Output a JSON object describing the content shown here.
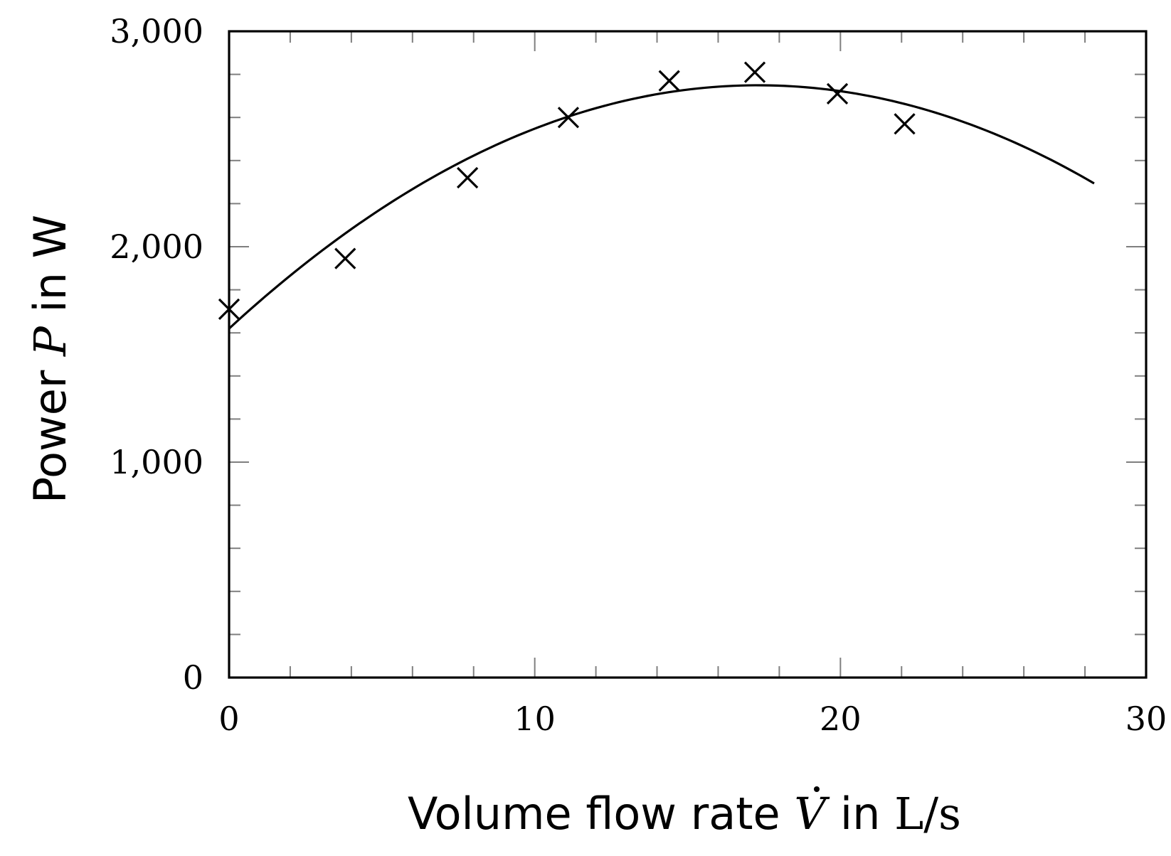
{
  "chart_data": {
    "type": "scatter",
    "xlabel": {
      "prefix": "Volume flow rate ",
      "symbol": "V",
      "mid": " in ",
      "unit": "L/s"
    },
    "ylabel": {
      "prefix": "Power ",
      "symbol": "P",
      "suffix": " in W"
    },
    "xlim": [
      0,
      30
    ],
    "ylim": [
      0,
      3000
    ],
    "x_ticks": [
      {
        "value": 0,
        "label": "0"
      },
      {
        "value": 10,
        "label": "10"
      },
      {
        "value": 20,
        "label": "20"
      },
      {
        "value": 30,
        "label": "30"
      }
    ],
    "y_ticks": [
      {
        "value": 0,
        "label": "0"
      },
      {
        "value": 1000,
        "label": "1,000"
      },
      {
        "value": 2000,
        "label": "2,000"
      },
      {
        "value": 3000,
        "label": "3,000"
      }
    ],
    "x_minor_step": 2,
    "y_minor_step": 200,
    "grid": false,
    "marker": "cross",
    "points": [
      {
        "x": 0.0,
        "y": 1710
      },
      {
        "x": 3.8,
        "y": 1945
      },
      {
        "x": 7.8,
        "y": 2320
      },
      {
        "x": 11.1,
        "y": 2600
      },
      {
        "x": 14.4,
        "y": 2770
      },
      {
        "x": 17.2,
        "y": 2810
      },
      {
        "x": 19.9,
        "y": 2710
      },
      {
        "x": 22.1,
        "y": 2570
      }
    ],
    "fit_curve": {
      "type": "quadratic",
      "coefficients": {
        "a": -3.77,
        "b": 130.5,
        "c": 1620
      },
      "x_range": [
        0,
        28.3
      ]
    }
  }
}
